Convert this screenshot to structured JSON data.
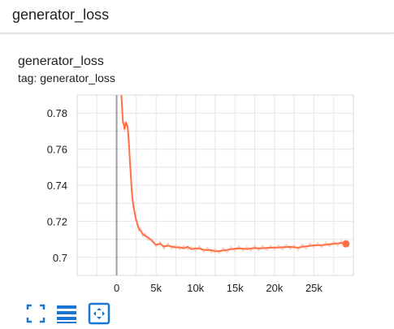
{
  "header": {
    "title": "generator_loss"
  },
  "card": {
    "title": "generator_loss",
    "tag": "tag: generator_loss"
  },
  "chart_data": {
    "type": "line",
    "title": "generator_loss",
    "xlabel": "",
    "ylabel": "",
    "xlim": [
      -5000,
      30000
    ],
    "ylim": [
      0.69,
      0.79
    ],
    "x_ticks": [
      0,
      5000,
      10000,
      15000,
      20000,
      25000
    ],
    "x_tick_labels": [
      "0",
      "5k",
      "10k",
      "15k",
      "20k",
      "25k"
    ],
    "y_ticks": [
      0.7,
      0.72,
      0.74,
      0.76,
      0.78
    ],
    "y_tick_labels": [
      "0.7",
      "0.72",
      "0.74",
      "0.76",
      "0.78"
    ],
    "grid": true,
    "series": [
      {
        "color": "#ff7043",
        "raw_color": "#ffccbc",
        "x": [
          600,
          800,
          900,
          1000,
          1100,
          1200,
          1400,
          1500,
          1600,
          1700,
          1800,
          1900,
          2000,
          2100,
          2200,
          2400,
          2600,
          2800,
          3000,
          3300,
          3600,
          4000,
          4500,
          5000,
          5500,
          6000,
          6500,
          7000,
          7500,
          8000,
          8500,
          9000,
          9500,
          10000,
          10500,
          11000,
          11500,
          12000,
          12500,
          13000,
          13500,
          14000,
          14500,
          15000,
          15500,
          16000,
          16500,
          17000,
          17500,
          18000,
          18500,
          19000,
          19500,
          20000,
          20500,
          21000,
          21500,
          22000,
          22500,
          23000,
          23500,
          24000,
          24500,
          25000,
          25500,
          26000,
          26500,
          27000,
          27500,
          28000,
          28500,
          29000
        ],
        "values": [
          0.79,
          0.775,
          0.774,
          0.771,
          0.773,
          0.775,
          0.772,
          0.767,
          0.76,
          0.752,
          0.745,
          0.738,
          0.733,
          0.729,
          0.727,
          0.722,
          0.719,
          0.716,
          0.715,
          0.713,
          0.712,
          0.711,
          0.709,
          0.707,
          0.7075,
          0.706,
          0.7065,
          0.706,
          0.7055,
          0.7056,
          0.705,
          0.7058,
          0.7045,
          0.705,
          0.7049,
          0.7042,
          0.704,
          0.704,
          0.7033,
          0.7035,
          0.7038,
          0.7041,
          0.7045,
          0.7048,
          0.705,
          0.7048,
          0.7046,
          0.7049,
          0.7052,
          0.705,
          0.7051,
          0.7052,
          0.7053,
          0.7055,
          0.7054,
          0.7056,
          0.7057,
          0.7058,
          0.7056,
          0.7053,
          0.7059,
          0.7061,
          0.7064,
          0.7067,
          0.7067,
          0.7068,
          0.707,
          0.7073,
          0.7075,
          0.7077,
          0.708,
          0.7075
        ]
      }
    ],
    "last_point": {
      "x": 29000,
      "y": 0.7075
    }
  },
  "icons": {
    "fullscreen": "fullscreen-icon",
    "toggle_log_scale": "list-icon",
    "fit_domain": "fit-domain-icon"
  },
  "colors": {
    "accent": "#1976d2",
    "line": "#ff7043",
    "raw_line": "#ffccbc"
  }
}
